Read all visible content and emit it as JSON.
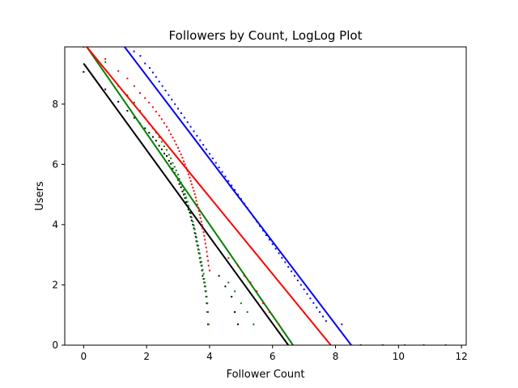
{
  "chart_data": {
    "type": "scatter",
    "title": "Followers by Count, LogLog Plot",
    "xlabel": "Follower Count",
    "ylabel": "Users",
    "xlim": [
      -0.6,
      12.15
    ],
    "ylim": [
      0,
      9.9
    ],
    "xticks": [
      0,
      2,
      4,
      6,
      8,
      10,
      12
    ],
    "yticks": [
      0,
      2,
      4,
      6,
      8
    ],
    "grid": false,
    "legend": "none",
    "series": [
      {
        "color": "#000000",
        "points": [
          [
            0.0,
            9.07
          ],
          [
            0.69,
            8.49
          ],
          [
            1.1,
            8.08
          ],
          [
            1.39,
            7.78
          ],
          [
            1.61,
            7.55
          ],
          [
            1.79,
            7.36
          ],
          [
            1.95,
            7.2
          ],
          [
            2.08,
            7.05
          ],
          [
            2.2,
            6.91
          ],
          [
            2.3,
            6.79
          ],
          [
            2.4,
            6.62
          ],
          [
            2.48,
            6.5
          ],
          [
            2.56,
            6.36
          ],
          [
            2.64,
            6.28
          ],
          [
            2.71,
            6.12
          ],
          [
            2.77,
            6.02
          ],
          [
            2.83,
            5.86
          ],
          [
            2.89,
            5.72
          ],
          [
            2.94,
            5.61
          ],
          [
            3.0,
            5.48
          ],
          [
            3.04,
            5.35
          ],
          [
            3.09,
            5.24
          ],
          [
            3.14,
            5.1
          ],
          [
            3.18,
            5.0
          ],
          [
            3.22,
            4.88
          ],
          [
            3.26,
            4.75
          ],
          [
            3.3,
            4.62
          ],
          [
            3.33,
            4.5
          ],
          [
            3.37,
            4.4
          ],
          [
            3.4,
            4.26
          ],
          [
            3.43,
            4.14
          ],
          [
            3.47,
            4.0
          ],
          [
            3.5,
            3.88
          ],
          [
            3.53,
            3.72
          ],
          [
            3.56,
            3.6
          ],
          [
            3.58,
            3.45
          ],
          [
            3.61,
            3.31
          ],
          [
            3.64,
            3.18
          ],
          [
            3.66,
            3.05
          ],
          [
            3.69,
            2.89
          ],
          [
            3.71,
            2.75
          ],
          [
            3.74,
            2.64
          ],
          [
            3.76,
            2.48
          ],
          [
            3.78,
            2.3
          ],
          [
            3.81,
            2.2
          ],
          [
            3.83,
            2.08
          ],
          [
            3.85,
            1.95
          ],
          [
            3.87,
            1.79
          ],
          [
            3.89,
            1.61
          ],
          [
            3.91,
            1.39
          ],
          [
            3.93,
            1.1
          ],
          [
            3.95,
            0.69
          ],
          [
            4.3,
            2.3
          ],
          [
            4.5,
            1.95
          ],
          [
            4.7,
            1.61
          ],
          [
            4.8,
            1.1
          ],
          [
            4.9,
            0.69
          ]
        ],
        "fit": [
          [
            0.0,
            9.35
          ],
          [
            6.5,
            0.0
          ]
        ]
      },
      {
        "color": "#008000",
        "points": [
          [
            0.1,
            9.9
          ],
          [
            0.69,
            9.4
          ],
          [
            1.1,
            8.6
          ],
          [
            1.39,
            8.3
          ],
          [
            1.61,
            8.05
          ],
          [
            1.79,
            7.78
          ],
          [
            1.95,
            7.55
          ],
          [
            2.08,
            7.36
          ],
          [
            2.2,
            7.2
          ],
          [
            2.3,
            7.05
          ],
          [
            2.4,
            6.9
          ],
          [
            2.48,
            6.75
          ],
          [
            2.56,
            6.6
          ],
          [
            2.64,
            6.48
          ],
          [
            2.71,
            6.32
          ],
          [
            2.77,
            6.2
          ],
          [
            2.83,
            6.05
          ],
          [
            2.89,
            5.92
          ],
          [
            2.94,
            5.8
          ],
          [
            3.0,
            5.66
          ],
          [
            3.04,
            5.52
          ],
          [
            3.09,
            5.4
          ],
          [
            3.14,
            5.28
          ],
          [
            3.18,
            5.15
          ],
          [
            3.22,
            5.02
          ],
          [
            3.26,
            4.9
          ],
          [
            3.3,
            4.76
          ],
          [
            3.33,
            4.63
          ],
          [
            3.37,
            4.5
          ],
          [
            3.4,
            4.37
          ],
          [
            3.43,
            4.24
          ],
          [
            3.47,
            4.1
          ],
          [
            3.5,
            3.97
          ],
          [
            3.53,
            3.84
          ],
          [
            3.56,
            3.7
          ],
          [
            3.58,
            3.57
          ],
          [
            3.61,
            3.44
          ],
          [
            3.64,
            3.3
          ],
          [
            3.66,
            3.17
          ],
          [
            3.69,
            3.04
          ],
          [
            3.71,
            2.9
          ],
          [
            3.74,
            2.77
          ],
          [
            3.76,
            2.64
          ],
          [
            3.78,
            2.5
          ],
          [
            3.81,
            2.37
          ],
          [
            3.83,
            2.2
          ],
          [
            3.85,
            2.08
          ],
          [
            3.87,
            1.95
          ],
          [
            3.89,
            1.79
          ],
          [
            3.91,
            1.61
          ],
          [
            3.93,
            1.39
          ],
          [
            3.95,
            1.1
          ],
          [
            3.97,
            0.69
          ],
          [
            4.6,
            2.08
          ],
          [
            4.8,
            1.79
          ],
          [
            5.0,
            1.39
          ],
          [
            5.2,
            1.1
          ],
          [
            5.4,
            0.69
          ]
        ],
        "fit": [
          [
            0.1,
            9.9
          ],
          [
            6.65,
            0.0
          ]
        ]
      },
      {
        "color": "#ff0000",
        "points": [
          [
            0.0,
            9.9
          ],
          [
            0.69,
            9.5
          ],
          [
            1.1,
            9.1
          ],
          [
            1.39,
            8.85
          ],
          [
            1.61,
            8.6
          ],
          [
            1.79,
            8.37
          ],
          [
            1.95,
            8.2
          ],
          [
            2.08,
            8.05
          ],
          [
            2.2,
            7.9
          ],
          [
            2.3,
            7.75
          ],
          [
            2.4,
            7.62
          ],
          [
            2.48,
            7.5
          ],
          [
            2.56,
            7.37
          ],
          [
            2.64,
            7.25
          ],
          [
            2.71,
            7.13
          ],
          [
            2.77,
            7.0
          ],
          [
            2.83,
            6.89
          ],
          [
            2.89,
            6.78
          ],
          [
            2.94,
            6.66
          ],
          [
            3.0,
            6.55
          ],
          [
            3.04,
            6.44
          ],
          [
            3.09,
            6.33
          ],
          [
            3.14,
            6.22
          ],
          [
            3.18,
            6.1
          ],
          [
            3.22,
            6.0
          ],
          [
            3.26,
            5.89
          ],
          [
            3.3,
            5.78
          ],
          [
            3.33,
            5.67
          ],
          [
            3.37,
            5.56
          ],
          [
            3.4,
            5.45
          ],
          [
            3.43,
            5.34
          ],
          [
            3.47,
            5.23
          ],
          [
            3.5,
            5.12
          ],
          [
            3.53,
            5.01
          ],
          [
            3.56,
            4.9
          ],
          [
            3.58,
            4.79
          ],
          [
            3.61,
            4.67
          ],
          [
            3.64,
            4.56
          ],
          [
            3.66,
            4.45
          ],
          [
            3.69,
            4.33
          ],
          [
            3.71,
            4.22
          ],
          [
            3.74,
            4.1
          ],
          [
            3.76,
            3.99
          ],
          [
            3.78,
            3.87
          ],
          [
            3.81,
            3.75
          ],
          [
            3.83,
            3.63
          ],
          [
            3.85,
            3.5
          ],
          [
            3.87,
            3.37
          ],
          [
            3.89,
            3.24
          ],
          [
            3.91,
            3.1
          ],
          [
            3.93,
            2.95
          ],
          [
            3.95,
            2.8
          ],
          [
            3.97,
            2.64
          ],
          [
            4.0,
            2.48
          ],
          [
            4.6,
            2.89
          ],
          [
            4.9,
            2.64
          ],
          [
            5.1,
            2.3
          ],
          [
            5.3,
            2.08
          ],
          [
            5.5,
            1.79
          ],
          [
            5.7,
            1.39
          ],
          [
            5.9,
            1.1
          ],
          [
            6.2,
            0.69
          ]
        ],
        "fit": [
          [
            0.1,
            9.9
          ],
          [
            7.85,
            0.0
          ]
        ]
      },
      {
        "color": "#0000ff",
        "points": [
          [
            1.6,
            9.75
          ],
          [
            1.8,
            9.6
          ],
          [
            1.95,
            9.35
          ],
          [
            2.1,
            9.2
          ],
          [
            2.2,
            9.05
          ],
          [
            2.3,
            8.9
          ],
          [
            2.4,
            8.75
          ],
          [
            2.5,
            8.6
          ],
          [
            2.6,
            8.45
          ],
          [
            2.7,
            8.3
          ],
          [
            2.8,
            8.15
          ],
          [
            2.9,
            8.0
          ],
          [
            3.0,
            7.85
          ],
          [
            3.1,
            7.7
          ],
          [
            3.2,
            7.55
          ],
          [
            3.3,
            7.4
          ],
          [
            3.4,
            7.25
          ],
          [
            3.5,
            7.1
          ],
          [
            3.6,
            6.95
          ],
          [
            3.7,
            6.8
          ],
          [
            3.8,
            6.65
          ],
          [
            3.9,
            6.5
          ],
          [
            4.0,
            6.35
          ],
          [
            4.1,
            6.2
          ],
          [
            4.2,
            6.05
          ],
          [
            4.3,
            5.9
          ],
          [
            4.4,
            5.75
          ],
          [
            4.5,
            5.6
          ],
          [
            4.6,
            5.45
          ],
          [
            4.7,
            5.3
          ],
          [
            4.8,
            5.15
          ],
          [
            4.9,
            5.0
          ],
          [
            5.0,
            4.85
          ],
          [
            5.1,
            4.7
          ],
          [
            5.2,
            4.55
          ],
          [
            5.3,
            4.4
          ],
          [
            5.4,
            4.25
          ],
          [
            5.5,
            4.1
          ],
          [
            5.6,
            3.95
          ],
          [
            5.7,
            3.8
          ],
          [
            5.8,
            3.65
          ],
          [
            5.9,
            3.5
          ],
          [
            6.0,
            3.35
          ],
          [
            6.1,
            3.2
          ],
          [
            6.2,
            3.05
          ],
          [
            6.3,
            2.9
          ],
          [
            6.4,
            2.75
          ],
          [
            6.5,
            2.6
          ],
          [
            6.6,
            2.45
          ],
          [
            6.7,
            2.3
          ],
          [
            6.8,
            2.15
          ],
          [
            6.9,
            2.0
          ],
          [
            7.0,
            1.85
          ],
          [
            7.1,
            1.7
          ],
          [
            7.2,
            1.55
          ],
          [
            7.3,
            1.4
          ],
          [
            7.4,
            1.25
          ],
          [
            7.5,
            1.1
          ],
          [
            7.6,
            0.95
          ],
          [
            7.7,
            0.8
          ],
          [
            8.2,
            0.69
          ],
          [
            8.8,
            0.0
          ],
          [
            9.5,
            0.0
          ],
          [
            10.2,
            0.0
          ],
          [
            10.8,
            0.0
          ],
          [
            11.5,
            0.0
          ]
        ],
        "fit": [
          [
            1.3,
            9.9
          ],
          [
            8.5,
            0.0
          ]
        ]
      }
    ]
  }
}
